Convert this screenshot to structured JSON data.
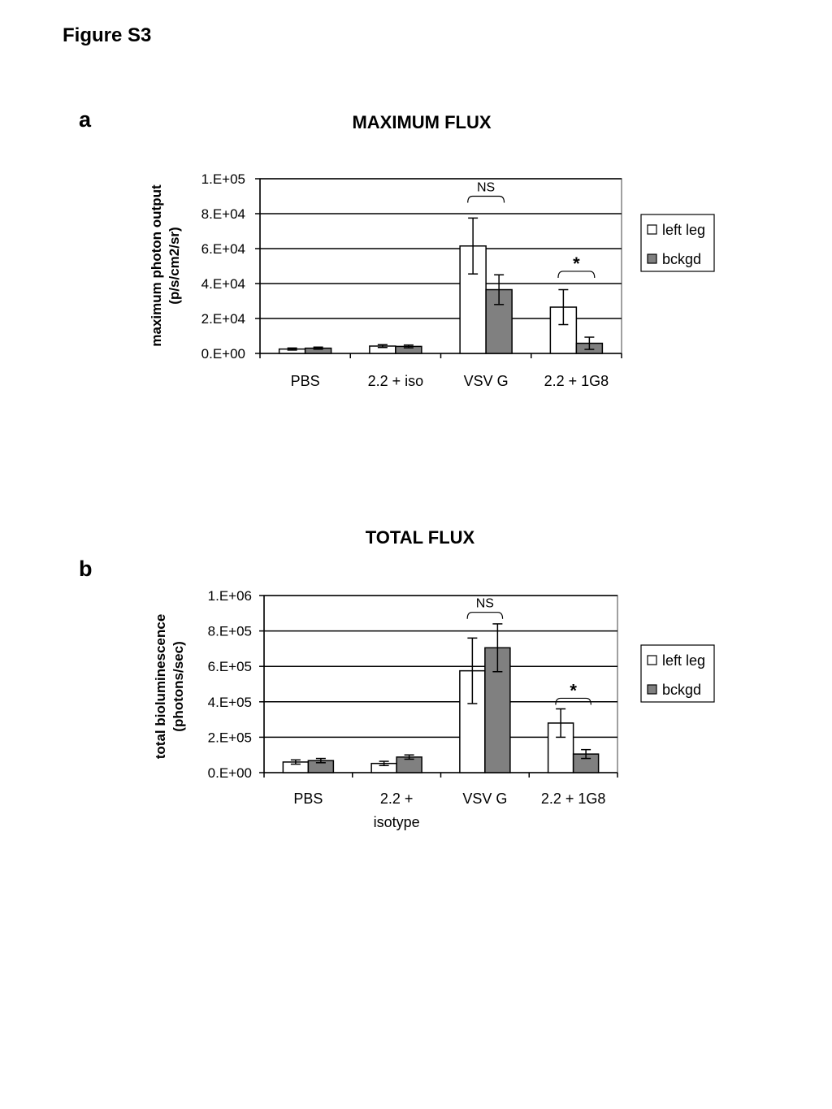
{
  "figure": {
    "title": "Figure S3",
    "panel_a": "a",
    "panel_b": "b"
  },
  "colors": {
    "left_leg": "#ffffff",
    "bckgd": "#808080"
  },
  "chart_data": [
    {
      "type": "bar",
      "title": "MAXIMUM FLUX",
      "ylabel": [
        "maximum photon output",
        "(p/s/cm2/sr)"
      ],
      "xlabel": "",
      "categories": [
        [
          "PBS"
        ],
        [
          "2.2 + iso"
        ],
        [
          "VSV G"
        ],
        [
          "2.2 + 1G8"
        ]
      ],
      "ylim": [
        0,
        100000
      ],
      "yticks": [
        {
          "value": 0,
          "label": "0.E+00"
        },
        {
          "value": 20000,
          "label": "2.E+04"
        },
        {
          "value": 40000,
          "label": "4.E+04"
        },
        {
          "value": 60000,
          "label": "6.E+04"
        },
        {
          "value": 80000,
          "label": "8.E+04"
        },
        {
          "value": 100000,
          "label": "1.E+05"
        }
      ],
      "grid": true,
      "legend_position": "right",
      "series": [
        {
          "name": "left leg",
          "color": "#ffffff",
          "values": [
            2500,
            4200,
            61500,
            26500
          ],
          "errors": [
            600,
            800,
            16000,
            10000
          ]
        },
        {
          "name": "bckgd",
          "color": "#808080",
          "values": [
            3000,
            4000,
            36500,
            5800
          ],
          "errors": [
            600,
            800,
            8500,
            3500
          ]
        }
      ],
      "annotations": [
        {
          "label": "NS",
          "category": 2,
          "kind": "bracket",
          "level": 90000
        },
        {
          "label": "*",
          "category": 3,
          "kind": "bracket",
          "level": 47000
        }
      ]
    },
    {
      "type": "bar",
      "title": "TOTAL FLUX",
      "ylabel": [
        "total bioluminescence",
        "(photons/sec)"
      ],
      "xlabel": "",
      "categories": [
        [
          "PBS"
        ],
        [
          "2.2 +",
          "isotype"
        ],
        [
          "VSV G"
        ],
        [
          "2.2 + 1G8"
        ]
      ],
      "ylim": [
        0,
        1000000
      ],
      "yticks": [
        {
          "value": 0,
          "label": "0.E+00"
        },
        {
          "value": 200000,
          "label": "2.E+05"
        },
        {
          "value": 400000,
          "label": "4.E+05"
        },
        {
          "value": 600000,
          "label": "6.E+05"
        },
        {
          "value": 800000,
          "label": "8.E+05"
        },
        {
          "value": 1000000,
          "label": "1.E+06"
        }
      ],
      "grid": true,
      "legend_position": "right",
      "series": [
        {
          "name": "left leg",
          "color": "#ffffff",
          "values": [
            60000,
            52000,
            575000,
            280000
          ],
          "errors": [
            12000,
            12000,
            185000,
            80000
          ],
          "error_mode": "both"
        },
        {
          "name": "bckgd",
          "color": "#808080",
          "values": [
            68000,
            88000,
            705000,
            105000
          ],
          "errors": [
            12000,
            12000,
            135000,
            25000
          ],
          "error_mode": "both"
        }
      ],
      "annotations": [
        {
          "label": "NS",
          "category": 2,
          "kind": "bracket",
          "level": 905000
        },
        {
          "label": "*",
          "category": 3,
          "kind": "bracket",
          "level": 420000
        }
      ]
    }
  ]
}
